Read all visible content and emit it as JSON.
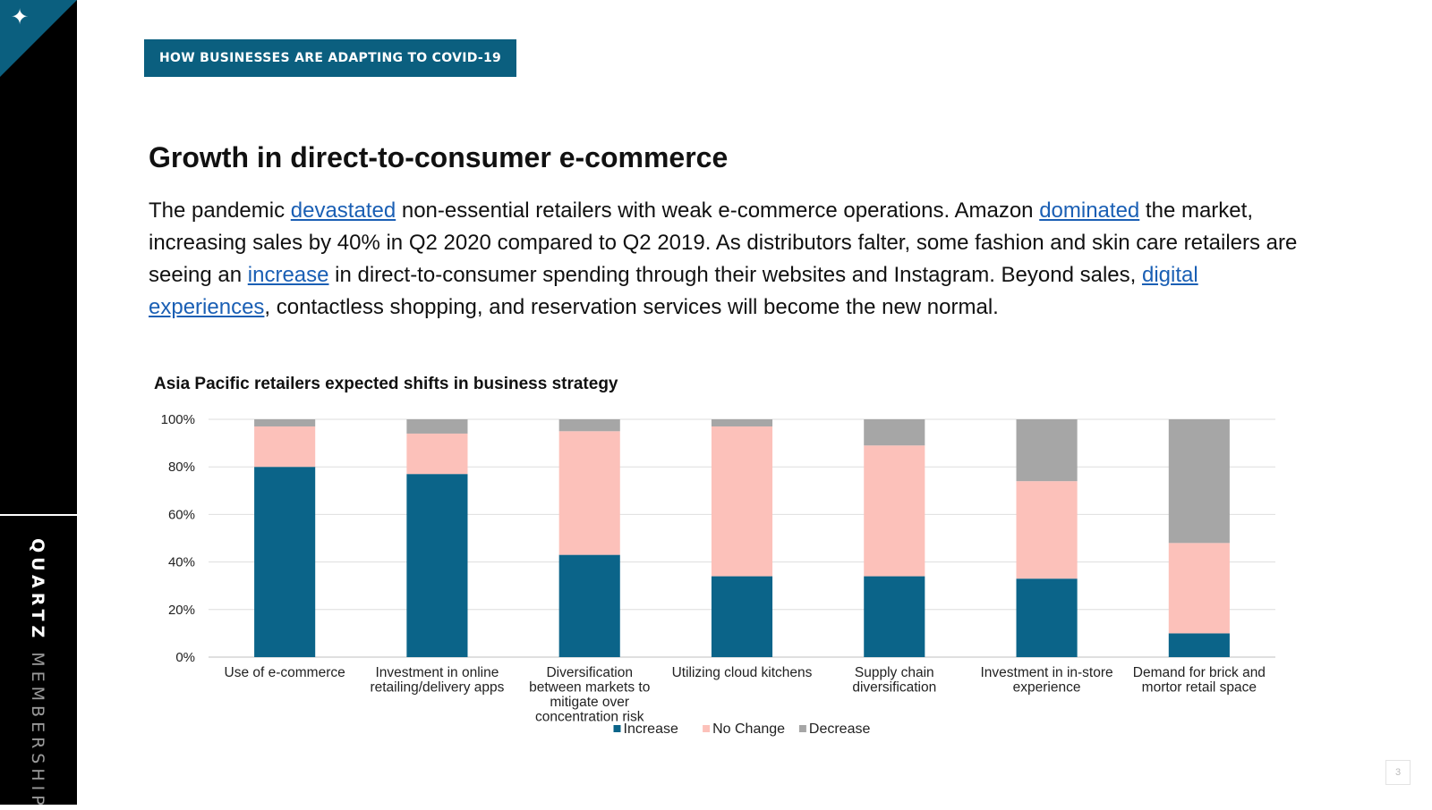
{
  "sidebar": {
    "logo_icon": "sparkle-star-icon",
    "brand_bold": "QUARTZ",
    "brand_light": "MEMBERSHIP"
  },
  "header": {
    "tag": "HOW BUSINESSES ARE ADAPTING TO COVID-19"
  },
  "content": {
    "title": "Growth in direct-to-consumer e-commerce",
    "paragraph": {
      "t1": "The pandemic ",
      "l1": "devastated",
      "t2": " non-essential retailers with weak e-commerce operations. Amazon ",
      "l2": "dominated",
      "t3": " the market, increasing sales by 40% in Q2 2020 compared to Q2 2019. As distributors falter, some fashion and skin care retailers are seeing an ",
      "l3": "increase",
      "t4": " in direct-to-consumer spending through their websites and Instagram. Beyond sales, ",
      "l4": "digital experiences",
      "t5": ", contactless shopping, and reservation services will become the new normal."
    }
  },
  "page_number": "3",
  "chart_data": {
    "type": "bar",
    "stacked": true,
    "title": "Asia Pacific retailers expected shifts in business strategy",
    "categories": [
      "Use of e-commerce",
      "Investment in online retailing/delivery apps",
      "Diversification between markets to mitigate over concentration risk",
      "Utilizing cloud kitchens",
      "Supply chain diversification",
      "Investment in in-store experience",
      "Demand for brick and mortor retail space"
    ],
    "category_lines": [
      [
        "Use of e-commerce"
      ],
      [
        "Investment in online",
        "retailing/delivery apps"
      ],
      [
        "Diversification",
        "between markets to",
        "mitigate over",
        "concentration risk"
      ],
      [
        "Utilizing cloud kitchens"
      ],
      [
        "Supply chain",
        "diversification"
      ],
      [
        "Investment in in-store",
        "experience"
      ],
      [
        "Demand for brick and",
        "mortor retail space"
      ]
    ],
    "series": [
      {
        "name": "Increase",
        "color": "#0b6489",
        "values": [
          80,
          77,
          43,
          34,
          34,
          33,
          10
        ]
      },
      {
        "name": "No Change",
        "color": "#fcc1ba",
        "values": [
          17,
          17,
          52,
          63,
          55,
          41,
          38
        ]
      },
      {
        "name": "Decrease",
        "color": "#a6a6a6",
        "values": [
          3,
          6,
          5,
          3,
          11,
          26,
          52
        ]
      }
    ],
    "ylim": [
      0,
      100
    ],
    "yticks": [
      "0%",
      "20%",
      "40%",
      "60%",
      "80%",
      "100%"
    ],
    "grid": true,
    "legend": "bottom-center"
  }
}
